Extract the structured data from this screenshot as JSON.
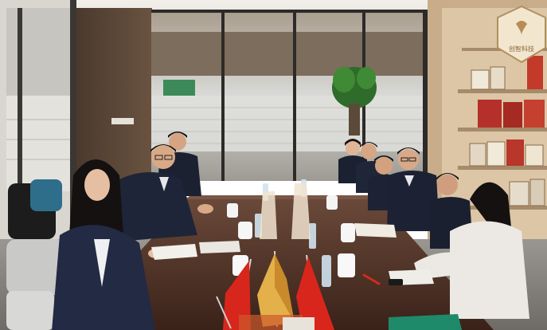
{
  "scene": {
    "logo_text": "创智科技",
    "palette": {
      "ceiling": "#e9e6e1",
      "wood_wall": "#5a4636",
      "glass": "#cfd3d3",
      "table": "#4a2f25",
      "shelf": "#d8c2a3",
      "suit": "#1f2638",
      "flag_red": "#d8261c",
      "flag_gold": "#e4b04a",
      "folder_green": "#1f8a6a"
    }
  }
}
